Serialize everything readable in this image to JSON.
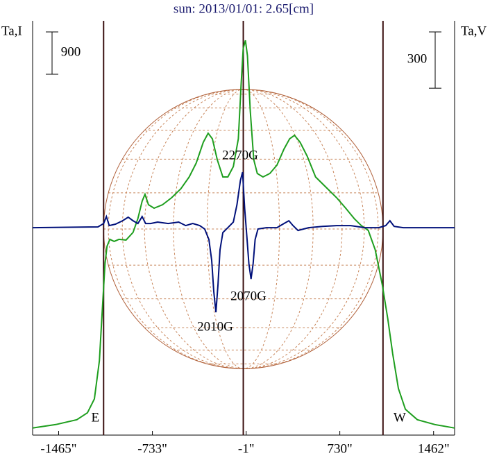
{
  "chart_data": {
    "type": "line",
    "title": "sun: 2013/01/01: 2.65[cm]",
    "y_label": "Ta,I",
    "y2_label": "Ta,V",
    "xlim": [
      -1668,
      1626
    ],
    "xticks": [
      {
        "value": -1465,
        "label": "-1465\""
      },
      {
        "value": -733,
        "label": "-733\""
      },
      {
        "value": -1,
        "label": "-1\""
      },
      {
        "value": 730,
        "label": "730\""
      },
      {
        "value": 1462,
        "label": "1462\""
      }
    ],
    "ylim": [
      -180,
      8630
    ],
    "y2lim": [
      -1106,
      1103
    ],
    "scale_bar": 900,
    "scale_bar2": 300,
    "markers": [
      {
        "label": "E",
        "x": -1114
      },
      {
        "label": "W",
        "x": 1067
      }
    ],
    "annotations": [
      "2270G",
      "2070G",
      "2010G"
    ],
    "series": [
      {
        "name": "I",
        "color": "#1e9e1e",
        "x": [
          -1668,
          -1487,
          -1323,
          -1240,
          -1186,
          -1147,
          -1125,
          -1103,
          -1087,
          -1065,
          -1032,
          -994,
          -939,
          -884,
          -846,
          -813,
          -791,
          -764,
          -720,
          -654,
          -583,
          -511,
          -446,
          -391,
          -336,
          -298,
          -265,
          -227,
          -183,
          -144,
          -101,
          -62,
          -40,
          -24,
          -7,
          9,
          31,
          58,
          86,
          130,
          184,
          239,
          294,
          338,
          376,
          420,
          475,
          541,
          623,
          705,
          776,
          842,
          897,
          952,
          1006,
          1061,
          1105,
          1143,
          1187,
          1242,
          1335,
          1472,
          1626
        ],
        "values": [
          -30,
          44,
          148,
          295,
          590,
          1401,
          2434,
          3466,
          3835,
          3983,
          3938,
          3983,
          3968,
          4130,
          4425,
          4794,
          4941,
          4720,
          4646,
          4720,
          4868,
          5059,
          5310,
          5605,
          6048,
          6239,
          6121,
          5679,
          5310,
          5310,
          5531,
          6121,
          7301,
          8039,
          8216,
          7891,
          6711,
          5679,
          5384,
          5310,
          5384,
          5561,
          5900,
          6121,
          6195,
          6048,
          5753,
          5310,
          5089,
          4868,
          4646,
          4425,
          4278,
          4174,
          3761,
          3024,
          2286,
          1549,
          811,
          369,
          148,
          44,
          -30
        ]
      },
      {
        "name": "V",
        "color": "#00107a",
        "axis": "y2",
        "x": [
          -1668,
          -1158,
          -1114,
          -1092,
          -1070,
          -1021,
          -966,
          -922,
          -884,
          -846,
          -813,
          -786,
          -747,
          -692,
          -610,
          -528,
          -473,
          -418,
          -364,
          -325,
          -292,
          -270,
          -254,
          -237,
          -221,
          -205,
          -183,
          -144,
          -101,
          -73,
          -46,
          -29,
          -13,
          4,
          20,
          37,
          53,
          69,
          91,
          157,
          239,
          294,
          332,
          365,
          404,
          486,
          595,
          705,
          814,
          924,
          1034,
          1088,
          1121,
          1154,
          1225,
          1626
        ],
        "values": [
          0,
          4,
          22,
          59,
          11,
          19,
          37,
          56,
          37,
          22,
          59,
          22,
          22,
          30,
          22,
          30,
          11,
          22,
          11,
          -7,
          -63,
          -174,
          -340,
          -451,
          -303,
          -118,
          -26,
          0,
          30,
          122,
          252,
          296,
          104,
          -44,
          -192,
          -274,
          -192,
          -63,
          -7,
          0,
          0,
          22,
          37,
          11,
          -15,
          0,
          7,
          11,
          11,
          0,
          0,
          11,
          37,
          7,
          0,
          0
        ]
      }
    ]
  }
}
